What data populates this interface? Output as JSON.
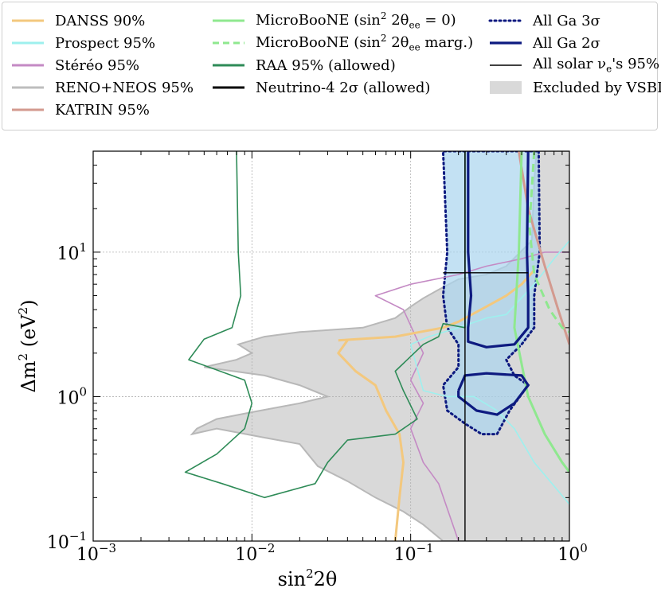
{
  "chart_data": {
    "type": "contour",
    "xlabel_base": "sin",
    "xlabel_sup": "2",
    "xlabel_rest": "2θ",
    "ylabel_base": "Δm",
    "ylabel_sup": "2",
    "ylabel_unit_open": " (eV",
    "ylabel_unit_sup": "2",
    "ylabel_unit_close": ")",
    "x_scale": "log",
    "y_scale": "log",
    "xlim": [
      0.001,
      1
    ],
    "ylim": [
      0.1,
      50
    ],
    "grid": true,
    "legend_placement": "top",
    "x_ticks": [
      {
        "value": 0.001,
        "base": "10",
        "exp": "−3"
      },
      {
        "value": 0.01,
        "base": "10",
        "exp": "−2"
      },
      {
        "value": 0.1,
        "base": "10",
        "exp": "−1"
      },
      {
        "value": 1,
        "base": "10",
        "exp": "0"
      }
    ],
    "y_ticks": [
      {
        "value": 0.1,
        "base": "10",
        "exp": "−1"
      },
      {
        "value": 1,
        "base": "10",
        "exp": "0"
      },
      {
        "value": 10,
        "base": "10",
        "exp": "1"
      }
    ],
    "legend": [
      {
        "key": "danss",
        "parts": [
          "DANSS 90%"
        ],
        "style": "line",
        "color": "#f3c87e"
      },
      {
        "key": "prospect",
        "parts": [
          "Prospect 95%"
        ],
        "style": "line",
        "color": "#9ef0ee"
      },
      {
        "key": "stereo",
        "parts": [
          "Stéréo 95%"
        ],
        "style": "line",
        "color": "#c48ac4"
      },
      {
        "key": "reno",
        "parts": [
          "RENO+NEOS 95%"
        ],
        "style": "line",
        "color": "#bdbdbd"
      },
      {
        "key": "katrin",
        "parts": [
          "KATRIN 95%"
        ],
        "style": "line",
        "color": "#d39a8f"
      },
      {
        "key": "microboone0",
        "parts": [
          "MicroBooNE (sin",
          "2",
          " 2θ",
          "ee",
          " = 0)"
        ],
        "style": "line",
        "color": "#8fe88f"
      },
      {
        "key": "microbooneMarg",
        "parts": [
          "MicroBooNE (sin",
          "2",
          " 2θ",
          "ee",
          " marg.)"
        ],
        "style": "dashed",
        "color": "#8fe88f"
      },
      {
        "key": "raa",
        "parts": [
          "RAA 95% (allowed)"
        ],
        "style": "line",
        "color": "#2e8b57"
      },
      {
        "key": "neutrino4",
        "parts": [
          "Neutrino-4 2σ (allowed)"
        ],
        "style": "line",
        "color": "#000000"
      },
      {
        "key": "ga3",
        "parts": [
          "All Ga 3σ"
        ],
        "style": "dotted",
        "color": "#0d1a80"
      },
      {
        "key": "ga2",
        "parts": [
          "All Ga 2σ"
        ],
        "style": "line",
        "color": "#0d1a80"
      },
      {
        "key": "solar",
        "parts": [
          "All solar ν",
          "e",
          "'s 95%"
        ],
        "style": "thin",
        "color": "#000000"
      },
      {
        "key": "vsbl",
        "parts": [
          "Excluded by VSBL"
        ],
        "style": "patch",
        "color": "#d9d9d9"
      }
    ],
    "series": {
      "vsbl_excluded": [
        [
          0.0042,
          0.55
        ],
        [
          0.006,
          0.6
        ],
        [
          0.012,
          0.52
        ],
        [
          0.02,
          0.47
        ],
        [
          0.026,
          0.33
        ],
        [
          0.04,
          0.26
        ],
        [
          0.06,
          0.2
        ],
        [
          0.09,
          0.16
        ],
        [
          0.12,
          0.13
        ],
        [
          0.16,
          0.1
        ],
        [
          1,
          0.1
        ],
        [
          1,
          50
        ],
        [
          0.62,
          50
        ],
        [
          0.6,
          30
        ],
        [
          0.58,
          12
        ],
        [
          0.4,
          8
        ],
        [
          0.3,
          7
        ],
        [
          0.2,
          6.5
        ],
        [
          0.15,
          5.5
        ],
        [
          0.12,
          4.8
        ],
        [
          0.1,
          4.2
        ],
        [
          0.08,
          3.5
        ],
        [
          0.05,
          3.0
        ],
        [
          0.02,
          2.8
        ],
        [
          0.012,
          2.6
        ],
        [
          0.0082,
          2.3
        ],
        [
          0.01,
          2.0
        ],
        [
          0.008,
          1.8
        ],
        [
          0.005,
          1.6
        ],
        [
          0.012,
          1.4
        ],
        [
          0.02,
          1.2
        ],
        [
          0.03,
          1.0
        ],
        [
          0.02,
          0.9
        ],
        [
          0.01,
          0.78
        ],
        [
          0.006,
          0.7
        ],
        [
          0.0045,
          0.6
        ]
      ],
      "danss": [
        [
          0.035,
          2.45
        ],
        [
          0.08,
          2.6
        ],
        [
          0.16,
          3.0
        ],
        [
          0.2,
          3.3
        ],
        [
          0.3,
          4.2
        ],
        [
          0.4,
          5.0
        ],
        [
          0.5,
          6.0
        ],
        [
          0.6,
          7.5
        ]
      ],
      "danss_lower": [
        [
          0.08,
          0.1
        ],
        [
          0.085,
          0.2
        ],
        [
          0.09,
          0.35
        ],
        [
          0.085,
          0.55
        ],
        [
          0.07,
          0.8
        ],
        [
          0.06,
          1.2
        ],
        [
          0.045,
          1.5
        ],
        [
          0.035,
          2.0
        ],
        [
          0.04,
          2.45
        ]
      ],
      "prospect": [
        [
          0.1,
          2.3
        ],
        [
          0.13,
          2.6
        ],
        [
          0.2,
          3.0
        ],
        [
          0.3,
          3.5
        ],
        [
          0.4,
          3.7
        ],
        [
          0.6,
          6.0
        ],
        [
          0.8,
          9.0
        ],
        [
          1,
          12
        ]
      ],
      "prospect_lower": [
        [
          1,
          0.18
        ],
        [
          0.6,
          0.35
        ],
        [
          0.45,
          0.6
        ],
        [
          0.35,
          0.8
        ],
        [
          0.25,
          1.0
        ],
        [
          0.17,
          1.0
        ],
        [
          0.12,
          1.1
        ],
        [
          0.1,
          2.3
        ]
      ],
      "stereo": [
        [
          0.2,
          0.1
        ],
        [
          0.15,
          0.25
        ],
        [
          0.12,
          0.35
        ],
        [
          0.1,
          0.6
        ],
        [
          0.12,
          0.9
        ],
        [
          0.1,
          1.3
        ],
        [
          0.12,
          2.0
        ],
        [
          0.09,
          4.0
        ],
        [
          0.06,
          5.0
        ],
        [
          0.1,
          6.0
        ],
        [
          0.2,
          7.0
        ],
        [
          0.3,
          8.0
        ],
        [
          0.5,
          9.0
        ],
        [
          0.7,
          10
        ],
        [
          1,
          10
        ]
      ],
      "katrin": [
        [
          0.48,
          50
        ],
        [
          0.55,
          20
        ],
        [
          0.7,
          8
        ],
        [
          0.85,
          4
        ],
        [
          1,
          2.3
        ]
      ],
      "microboone0": [
        [
          0.5,
          50
        ],
        [
          0.48,
          10
        ],
        [
          0.45,
          3.0
        ],
        [
          0.55,
          1.0
        ],
        [
          0.7,
          0.55
        ],
        [
          0.9,
          0.35
        ],
        [
          1,
          0.3
        ]
      ],
      "microbooneMarg": [
        [
          0.6,
          50
        ],
        [
          0.56,
          15
        ],
        [
          0.6,
          7
        ],
        [
          0.75,
          4
        ],
        [
          0.9,
          3
        ],
        [
          1,
          2.8
        ]
      ],
      "raa": [
        [
          0.008,
          50
        ],
        [
          0.0082,
          10
        ],
        [
          0.0085,
          5
        ],
        [
          0.0075,
          3.0
        ],
        [
          0.005,
          2.5
        ],
        [
          0.004,
          1.8
        ],
        [
          0.009,
          1.3
        ],
        [
          0.01,
          0.9
        ],
        [
          0.009,
          0.6
        ],
        [
          0.006,
          0.4
        ],
        [
          0.0038,
          0.3
        ],
        [
          0.0065,
          0.25
        ],
        [
          0.012,
          0.2
        ],
        [
          0.025,
          0.25
        ],
        [
          0.03,
          0.35
        ],
        [
          0.04,
          0.5
        ],
        [
          0.08,
          0.55
        ],
        [
          0.11,
          0.7
        ],
        [
          0.09,
          1.1
        ],
        [
          0.08,
          1.5
        ],
        [
          0.12,
          2.3
        ],
        [
          0.15,
          2.6
        ],
        [
          0.16,
          3.2
        ],
        [
          0.22,
          3.0
        ],
        [
          0.22,
          50
        ]
      ],
      "neutrino4": [
        [
          0.16,
          7.2
        ],
        [
          0.55,
          7.2
        ]
      ],
      "ga3_right": [
        [
          0.64,
          50
        ],
        [
          0.65,
          10
        ],
        [
          0.6,
          5
        ],
        [
          0.6,
          3
        ],
        [
          0.5,
          2.3
        ],
        [
          0.4,
          1.8
        ],
        [
          0.45,
          1.4
        ],
        [
          0.55,
          1.2
        ],
        [
          0.42,
          0.8
        ],
        [
          0.35,
          0.55
        ],
        [
          0.28,
          0.55
        ],
        [
          0.22,
          0.65
        ],
        [
          0.17,
          0.8
        ],
        [
          0.16,
          1.2
        ],
        [
          0.2,
          1.6
        ],
        [
          0.2,
          2.3
        ],
        [
          0.17,
          3.0
        ],
        [
          0.16,
          5
        ],
        [
          0.17,
          10
        ],
        [
          0.16,
          50
        ]
      ],
      "ga2_upper": [
        [
          0.23,
          50
        ],
        [
          0.23,
          10
        ],
        [
          0.24,
          5
        ],
        [
          0.23,
          3.0
        ],
        [
          0.23,
          2.4
        ],
        [
          0.3,
          2.2
        ],
        [
          0.45,
          2.3
        ],
        [
          0.55,
          3.0
        ],
        [
          0.55,
          5
        ],
        [
          0.54,
          10
        ],
        [
          0.55,
          50
        ]
      ],
      "ga2_lower": [
        [
          0.2,
          1.1
        ],
        [
          0.22,
          1.4
        ],
        [
          0.3,
          1.45
        ],
        [
          0.5,
          1.4
        ],
        [
          0.55,
          1.2
        ],
        [
          0.45,
          0.9
        ],
        [
          0.35,
          0.75
        ],
        [
          0.26,
          0.8
        ],
        [
          0.2,
          1.0
        ],
        [
          0.2,
          1.1
        ]
      ],
      "solar": [
        [
          0.22,
          0.1
        ],
        [
          0.22,
          50
        ]
      ]
    }
  }
}
